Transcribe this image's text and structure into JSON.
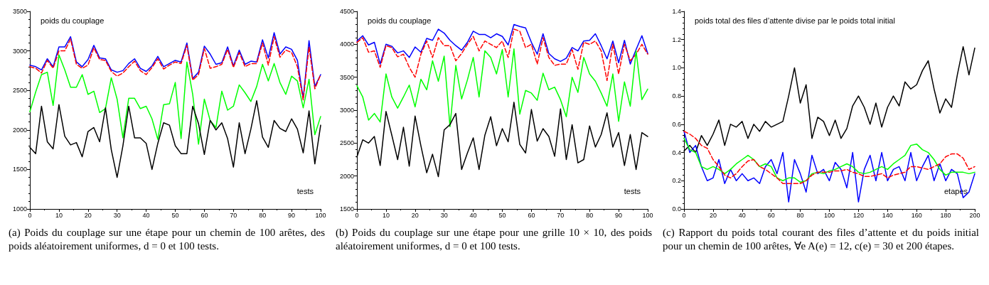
{
  "chart_data": [
    {
      "type": "line",
      "title": "poids du couplage",
      "xlabel": "tests",
      "annotations": [
        "(a) Poids du couplage sur une étape pour un chemin de 100 arêtes, des poids aléatoirement uniformes, d = 0 et 100 tests."
      ],
      "x": [
        0,
        2,
        4,
        6,
        8,
        10,
        12,
        14,
        16,
        18,
        20,
        22,
        24,
        26,
        28,
        30,
        32,
        34,
        36,
        38,
        40,
        42,
        44,
        46,
        48,
        50,
        52,
        54,
        56,
        58,
        60,
        62,
        64,
        66,
        68,
        70,
        72,
        74,
        76,
        78,
        80,
        82,
        84,
        86,
        88,
        90,
        92,
        94,
        96,
        98,
        100
      ],
      "series": [
        {
          "color": "#0000ff",
          "values": [
            2820,
            2800,
            2760,
            2900,
            2800,
            3050,
            3050,
            3180,
            2860,
            2800,
            2890,
            3070,
            2910,
            2900,
            2760,
            2730,
            2750,
            2840,
            2900,
            2780,
            2740,
            2810,
            2930,
            2800,
            2840,
            2880,
            2860,
            3100,
            2650,
            2730,
            3060,
            2960,
            2830,
            2850,
            3050,
            2810,
            3010,
            2830,
            2870,
            2860,
            3140,
            2910,
            3230,
            2960,
            3050,
            3020,
            2880,
            2400,
            3130,
            2550,
            2700
          ]
        },
        {
          "color": "#ff0000",
          "line_style": "dashed",
          "values": [
            2800,
            2780,
            2720,
            2880,
            2780,
            3000,
            3000,
            3150,
            2830,
            2780,
            2820,
            3040,
            2890,
            2880,
            2740,
            2680,
            2720,
            2800,
            2870,
            2750,
            2700,
            2790,
            2900,
            2770,
            2820,
            2860,
            2840,
            3070,
            2630,
            2700,
            3030,
            2780,
            2800,
            2830,
            3020,
            2790,
            2980,
            2800,
            2840,
            2840,
            3100,
            2820,
            3180,
            2920,
            3010,
            2980,
            2800,
            2380,
            3050,
            2520,
            2700
          ]
        },
        {
          "color": "#00ff00",
          "values": [
            2230,
            2480,
            2700,
            2730,
            2310,
            2950,
            2760,
            2540,
            2540,
            2700,
            2450,
            2490,
            2220,
            2270,
            2660,
            2390,
            1900,
            2400,
            2400,
            2270,
            2300,
            2140,
            1880,
            2320,
            2330,
            2600,
            1890,
            2860,
            2450,
            1820,
            2390,
            2120,
            2030,
            2490,
            2250,
            2300,
            2570,
            2470,
            2360,
            2550,
            2830,
            2620,
            2840,
            2600,
            2450,
            2680,
            2620,
            2280,
            2640,
            1940,
            2170
          ]
        },
        {
          "color": "#000000",
          "values": [
            1780,
            1700,
            2300,
            1850,
            1760,
            2320,
            1920,
            1810,
            1840,
            1660,
            1980,
            2030,
            1850,
            2280,
            1750,
            1400,
            1800,
            2300,
            1900,
            1900,
            1830,
            1500,
            1830,
            2090,
            2060,
            1800,
            1700,
            1700,
            2300,
            2080,
            1690,
            2120,
            2000,
            2090,
            1890,
            1530,
            2090,
            1700,
            2010,
            2370,
            1910,
            1780,
            2120,
            2020,
            1980,
            2140,
            2010,
            1710,
            2240,
            1570,
            2060
          ]
        }
      ],
      "xlim": [
        0,
        100
      ],
      "xticks": [
        0,
        10,
        20,
        30,
        40,
        50,
        60,
        70,
        80,
        90,
        100
      ],
      "ylim": [
        1000,
        3500
      ],
      "yticks": [
        1000,
        1500,
        2000,
        2500,
        3000,
        3500
      ],
      "grid": false,
      "marker": "none"
    },
    {
      "type": "line",
      "title": "poids du couplage",
      "xlabel": "tests",
      "annotations": [
        "(b) Poids du couplage sur une étape pour une grille 10 × 10, des poids aléatoirement uniformes, d = 0 et 100 tests."
      ],
      "x": [
        0,
        2,
        4,
        6,
        8,
        10,
        12,
        14,
        16,
        18,
        20,
        22,
        24,
        26,
        28,
        30,
        32,
        34,
        36,
        38,
        40,
        42,
        44,
        46,
        48,
        50,
        52,
        54,
        56,
        58,
        60,
        62,
        64,
        66,
        68,
        70,
        72,
        74,
        76,
        78,
        80,
        82,
        84,
        86,
        88,
        90,
        92,
        94,
        96,
        98,
        100
      ],
      "series": [
        {
          "color": "#0000ff",
          "values": [
            4050,
            4130,
            3990,
            4030,
            3700,
            4000,
            3970,
            3870,
            3900,
            3800,
            3960,
            3880,
            4090,
            4060,
            4230,
            4170,
            4060,
            3980,
            3910,
            4030,
            4200,
            4150,
            4150,
            4100,
            4160,
            4120,
            3990,
            4300,
            4270,
            4250,
            4030,
            3850,
            4160,
            3860,
            3780,
            3740,
            3790,
            3950,
            3900,
            4050,
            4060,
            4160,
            3980,
            3780,
            4050,
            3720,
            4060,
            3700,
            3920,
            4130,
            3860
          ]
        },
        {
          "color": "#ff0000",
          "line_style": "dashed",
          "values": [
            4030,
            4100,
            3880,
            3900,
            3650,
            3980,
            3950,
            3810,
            3850,
            3650,
            3500,
            3850,
            4050,
            3800,
            4100,
            3980,
            3980,
            3750,
            3860,
            4000,
            4120,
            3900,
            4050,
            4000,
            3950,
            4050,
            3800,
            4230,
            4200,
            3950,
            4000,
            3700,
            4100,
            3800,
            3680,
            3700,
            3700,
            3920,
            3620,
            4030,
            4000,
            4050,
            3900,
            3450,
            4000,
            3550,
            4000,
            3750,
            3850,
            4000,
            3850
          ]
        },
        {
          "color": "#00ff00",
          "values": [
            3370,
            3200,
            2850,
            2950,
            2820,
            3550,
            3200,
            3030,
            3200,
            3380,
            3050,
            3470,
            3310,
            3750,
            3440,
            3820,
            2750,
            3680,
            3170,
            3460,
            3800,
            3200,
            3900,
            3800,
            3550,
            3920,
            3200,
            3930,
            2940,
            3300,
            3260,
            3150,
            3560,
            3310,
            3350,
            3160,
            2900,
            3500,
            3270,
            3800,
            3550,
            3440,
            3260,
            3060,
            3550,
            2830,
            3430,
            3060,
            3900,
            3160,
            3320
          ]
        },
        {
          "color": "#000000",
          "values": [
            2290,
            2550,
            2500,
            2600,
            2160,
            2980,
            2620,
            2250,
            2740,
            2150,
            2910,
            2460,
            2050,
            2330,
            1990,
            2700,
            2780,
            2950,
            2100,
            2350,
            2580,
            2100,
            2620,
            2900,
            2460,
            2720,
            2520,
            3120,
            2480,
            2350,
            3010,
            2530,
            2720,
            2600,
            2300,
            3020,
            2250,
            2780,
            2200,
            2250,
            2760,
            2440,
            2630,
            2960,
            2440,
            2660,
            2160,
            2630,
            2100,
            2660,
            2600
          ]
        }
      ],
      "xlim": [
        0,
        100
      ],
      "xticks": [
        0,
        10,
        20,
        30,
        40,
        50,
        60,
        70,
        80,
        90,
        100
      ],
      "ylim": [
        1500,
        4500
      ],
      "yticks": [
        1500,
        2000,
        2500,
        3000,
        3500,
        4000,
        4500
      ],
      "grid": false,
      "marker": "none"
    },
    {
      "type": "line",
      "title": "poids total des files d’attente divise par le poids total initial",
      "xlabel": "etapes",
      "annotations": [
        "(c) Rapport du poids total courant des files d’attente et du poids initial pour un chemin de 100 arêtes, ∀e A(e) = 12, c(e) = 30 et 200 étapes."
      ],
      "x": [
        0,
        4,
        8,
        12,
        16,
        20,
        24,
        28,
        32,
        36,
        40,
        44,
        48,
        52,
        56,
        60,
        64,
        68,
        72,
        76,
        80,
        84,
        88,
        92,
        96,
        100,
        104,
        108,
        112,
        116,
        120,
        124,
        128,
        132,
        136,
        140,
        144,
        148,
        152,
        156,
        160,
        164,
        168,
        172,
        176,
        180,
        184,
        188,
        192,
        196,
        200
      ],
      "series": [
        {
          "color": "#000000",
          "values": [
            0.41,
            0.45,
            0.4,
            0.52,
            0.45,
            0.53,
            0.63,
            0.45,
            0.6,
            0.58,
            0.62,
            0.5,
            0.6,
            0.55,
            0.62,
            0.58,
            0.6,
            0.62,
            0.8,
            1.0,
            0.75,
            0.88,
            0.5,
            0.65,
            0.62,
            0.52,
            0.63,
            0.5,
            0.57,
            0.73,
            0.8,
            0.72,
            0.6,
            0.75,
            0.58,
            0.72,
            0.8,
            0.73,
            0.9,
            0.85,
            0.88,
            0.98,
            1.05,
            0.85,
            0.68,
            0.78,
            0.72,
            0.95,
            1.15,
            0.95,
            1.14
          ]
        },
        {
          "color": "#0000ff",
          "values": [
            0.55,
            0.4,
            0.45,
            0.3,
            0.2,
            0.22,
            0.35,
            0.18,
            0.28,
            0.2,
            0.25,
            0.2,
            0.22,
            0.18,
            0.3,
            0.35,
            0.25,
            0.4,
            0.05,
            0.35,
            0.25,
            0.12,
            0.38,
            0.25,
            0.28,
            0.2,
            0.33,
            0.28,
            0.15,
            0.4,
            0.05,
            0.28,
            0.38,
            0.2,
            0.4,
            0.2,
            0.28,
            0.3,
            0.2,
            0.4,
            0.2,
            0.3,
            0.38,
            0.2,
            0.32,
            0.2,
            0.28,
            0.25,
            0.08,
            0.12,
            0.25
          ]
        },
        {
          "color": "#00ff00",
          "values": [
            0.5,
            0.42,
            0.4,
            0.3,
            0.28,
            0.3,
            0.28,
            0.25,
            0.28,
            0.32,
            0.35,
            0.38,
            0.35,
            0.3,
            0.32,
            0.3,
            0.22,
            0.2,
            0.22,
            0.22,
            0.19,
            0.2,
            0.25,
            0.26,
            0.25,
            0.27,
            0.28,
            0.3,
            0.32,
            0.3,
            0.26,
            0.25,
            0.26,
            0.28,
            0.3,
            0.28,
            0.32,
            0.35,
            0.38,
            0.45,
            0.46,
            0.42,
            0.4,
            0.35,
            0.28,
            0.24,
            0.26,
            0.26,
            0.26,
            0.25,
            0.26
          ]
        },
        {
          "color": "#ff0000",
          "line_style": "dashed",
          "values": [
            0.55,
            0.53,
            0.5,
            0.45,
            0.43,
            0.35,
            0.3,
            0.24,
            0.22,
            0.25,
            0.3,
            0.34,
            0.35,
            0.3,
            0.28,
            0.25,
            0.22,
            0.18,
            0.18,
            0.18,
            0.18,
            0.2,
            0.24,
            0.26,
            0.26,
            0.26,
            0.27,
            0.27,
            0.28,
            0.26,
            0.25,
            0.23,
            0.23,
            0.24,
            0.25,
            0.22,
            0.24,
            0.25,
            0.26,
            0.3,
            0.3,
            0.29,
            0.28,
            0.3,
            0.32,
            0.37,
            0.39,
            0.39,
            0.36,
            0.28,
            0.3
          ]
        }
      ],
      "xlim": [
        0,
        200
      ],
      "xticks": [
        0,
        20,
        40,
        60,
        80,
        100,
        120,
        140,
        160,
        180,
        200
      ],
      "ylim": [
        0,
        1.4
      ],
      "yticks": [
        {
          "value": 0,
          "label": "0.0"
        },
        0.2,
        0.4,
        0.6,
        0.8,
        {
          "value": 1,
          "label": "1.0"
        },
        1.2,
        1.4
      ],
      "grid": false,
      "marker": "none"
    }
  ]
}
